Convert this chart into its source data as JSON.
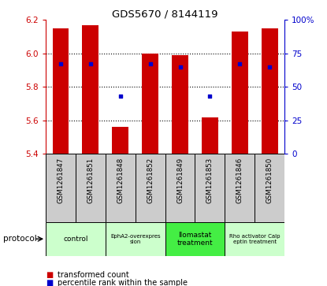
{
  "title": "GDS5670 / 8144119",
  "samples": [
    "GSM1261847",
    "GSM1261851",
    "GSM1261848",
    "GSM1261852",
    "GSM1261849",
    "GSM1261853",
    "GSM1261846",
    "GSM1261850"
  ],
  "bar_heights": [
    6.15,
    6.17,
    5.56,
    6.0,
    5.99,
    5.62,
    6.13,
    6.15
  ],
  "bar_base": 5.4,
  "actual_percentiles": [
    67,
    67,
    43,
    67,
    65,
    43,
    67,
    65
  ],
  "ylim_left": [
    5.4,
    6.2
  ],
  "ylim_right": [
    0,
    100
  ],
  "yticks_left": [
    5.4,
    5.6,
    5.8,
    6.0,
    6.2
  ],
  "yticks_right": [
    0,
    25,
    50,
    75,
    100
  ],
  "grid_lines": [
    5.6,
    5.8,
    6.0
  ],
  "protocols": [
    {
      "label": "control",
      "cols": [
        0,
        1
      ],
      "color": "#ccffcc",
      "text_color": "#000000",
      "fontsize": 9
    },
    {
      "label": "EphA2-overexpres\nsion",
      "cols": [
        2,
        3
      ],
      "color": "#ccffcc",
      "text_color": "#000000",
      "fontsize": 7
    },
    {
      "label": "Ilomastat\ntreatment",
      "cols": [
        4,
        5
      ],
      "color": "#44ee44",
      "text_color": "#000000",
      "fontsize": 9
    },
    {
      "label": "Rho activator Calp\neptin treatment",
      "cols": [
        6,
        7
      ],
      "color": "#ccffcc",
      "text_color": "#000000",
      "fontsize": 7
    }
  ],
  "bar_color": "#cc0000",
  "dot_color": "#0000cc",
  "dot_size": 12,
  "grid_color": "#000000",
  "grid_linestyle": "dotted",
  "tick_color_left": "#cc0000",
  "tick_color_right": "#0000cc",
  "legend_bar_label": "transformed count",
  "legend_dot_label": "percentile rank within the sample",
  "protocol_label": "protocol",
  "sample_bg_color": "#cccccc",
  "bar_width": 0.55,
  "xlim": [
    -0.5,
    7.5
  ]
}
